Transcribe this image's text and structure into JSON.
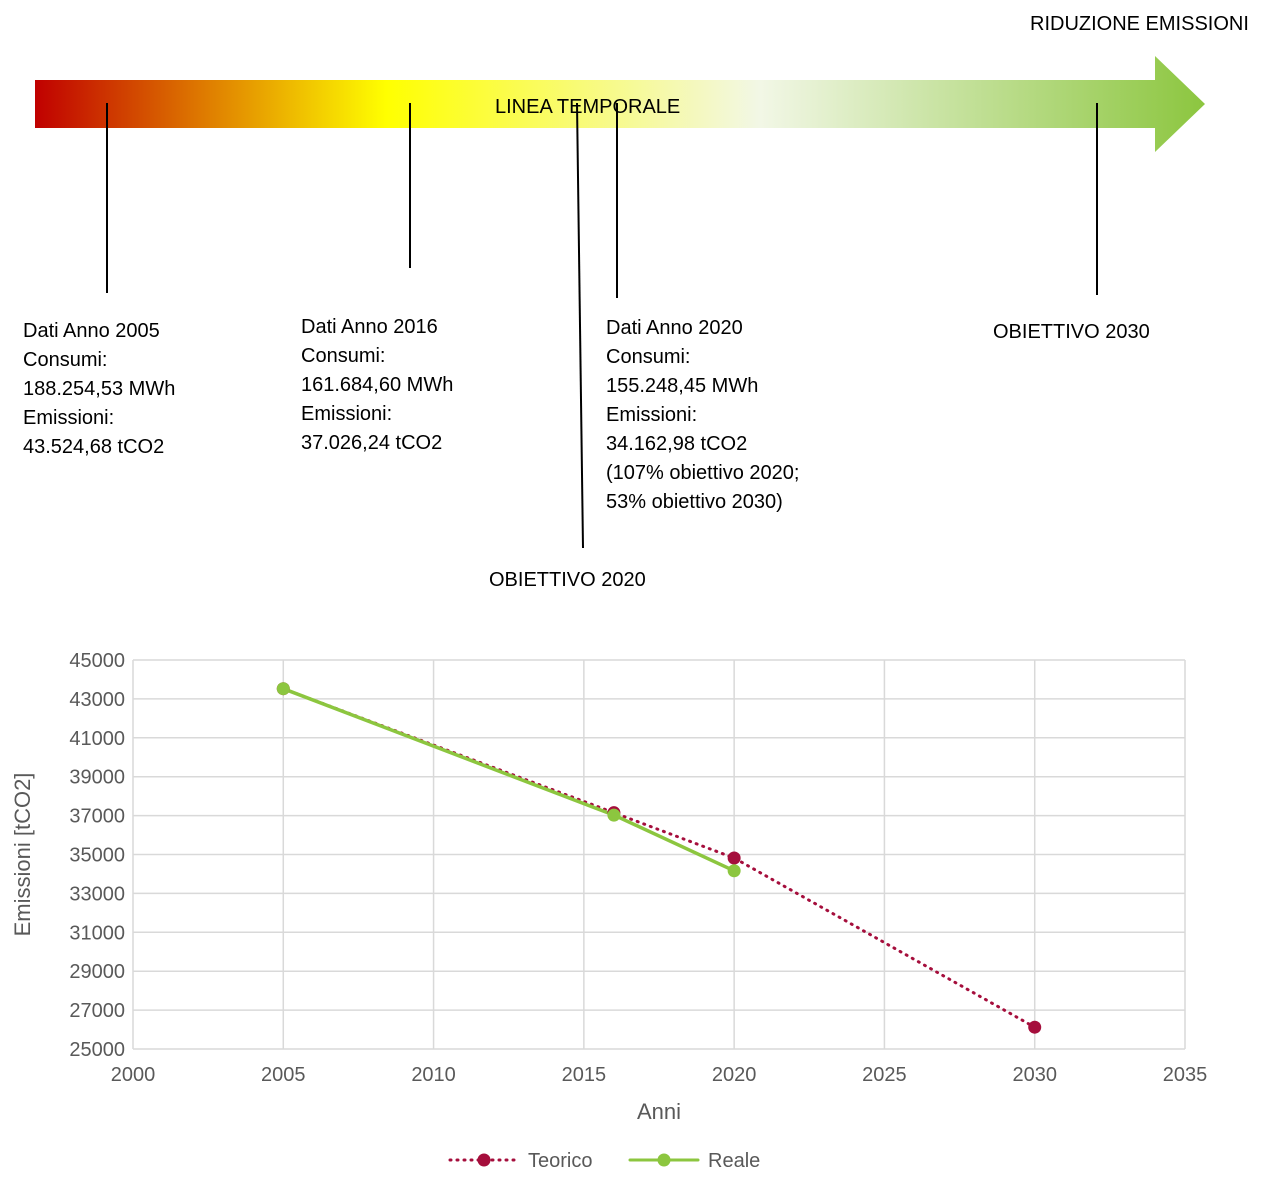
{
  "timeline": {
    "header": "RIDUZIONE EMISSIONI",
    "arrow_label": "LINEA TEMPORALE",
    "colors": {
      "start": "#c00000",
      "mid": "#ffff00",
      "light": "#f2f7e6",
      "end": "#8cc63f"
    },
    "events": [
      {
        "id": "2005",
        "lines": [
          "Dati Anno 2005",
          "Consumi:",
          "188.254,53 MWh",
          "Emissioni:",
          "43.524,68 tCO2"
        ]
      },
      {
        "id": "2016",
        "lines": [
          "Dati Anno 2016",
          "Consumi:",
          "161.684,60 MWh",
          "Emissioni:",
          "37.026,24 tCO2"
        ]
      },
      {
        "id": "obj2020",
        "lines": [
          "OBIETTIVO 2020"
        ]
      },
      {
        "id": "2020",
        "lines": [
          "Dati Anno 2020",
          "Consumi:",
          "155.248,45 MWh",
          "Emissioni:",
          "34.162,98 tCO2",
          "(107% obiettivo 2020;",
          "53% obiettivo 2030)"
        ]
      },
      {
        "id": "obj2030",
        "lines": [
          "OBIETTIVO 2030"
        ]
      }
    ]
  },
  "chart_data": {
    "type": "line",
    "xlabel": "Anni",
    "ylabel": "Emissioni [tCO2]",
    "xlim": [
      2000,
      2035
    ],
    "ylim": [
      25000,
      45000
    ],
    "xticks": [
      2000,
      2005,
      2010,
      2015,
      2020,
      2025,
      2030,
      2035
    ],
    "yticks": [
      25000,
      27000,
      29000,
      31000,
      33000,
      35000,
      37000,
      39000,
      41000,
      43000,
      45000
    ],
    "grid": true,
    "legend_position": "bottom",
    "series": [
      {
        "name": "Teorico",
        "color": "#a50e3c",
        "style": "dotted",
        "points": [
          [
            2005,
            43525
          ],
          [
            2016,
            37150
          ],
          [
            2020,
            34820
          ],
          [
            2030,
            26120
          ]
        ]
      },
      {
        "name": "Reale",
        "color": "#8cc63f",
        "style": "solid",
        "points": [
          [
            2005,
            43525
          ],
          [
            2016,
            37026
          ],
          [
            2020,
            34163
          ]
        ]
      }
    ]
  }
}
